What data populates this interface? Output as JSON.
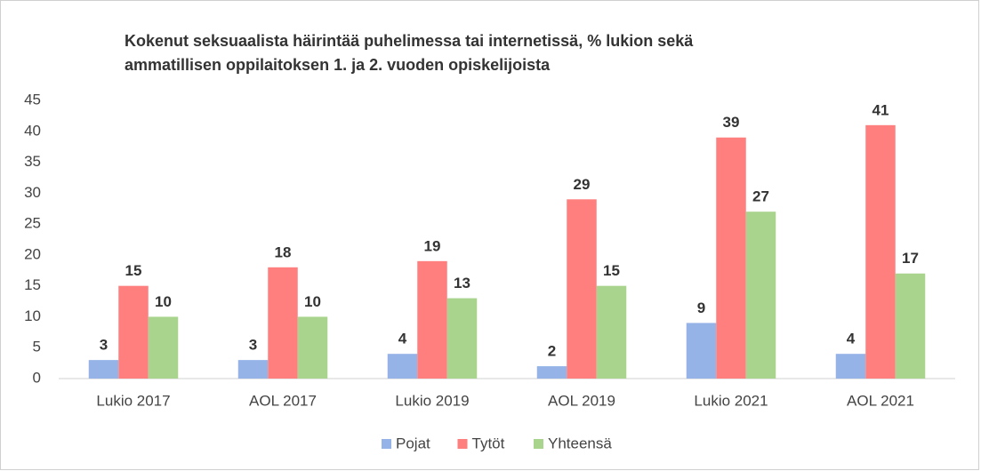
{
  "chart_data": {
    "type": "bar",
    "title": [
      "Kokenut seksuaalista  häirintää puhelimessa tai internetissä, %  lukion sekä",
      "ammatillisen oppilaitoksen 1. ja 2. vuoden opiskelijoista"
    ],
    "categories": [
      "Lukio 2017",
      "AOL 2017",
      "Lukio 2019",
      "AOL 2019",
      "Lukio 2021",
      "AOL 2021"
    ],
    "series": [
      {
        "name": "Pojat",
        "color": "#95b3e7",
        "values": [
          3,
          3,
          4,
          2,
          9,
          4
        ]
      },
      {
        "name": "Tytöt",
        "color": "#ff7f7f",
        "values": [
          15,
          18,
          19,
          29,
          39,
          41
        ]
      },
      {
        "name": "Yhteensä",
        "color": "#a9d48e",
        "values": [
          10,
          10,
          13,
          15,
          27,
          17
        ]
      }
    ],
    "ylim": [
      0,
      45
    ],
    "yticks": [
      0,
      5,
      10,
      15,
      20,
      25,
      30,
      35,
      40,
      45
    ],
    "grid": false,
    "legend": "bottom"
  }
}
